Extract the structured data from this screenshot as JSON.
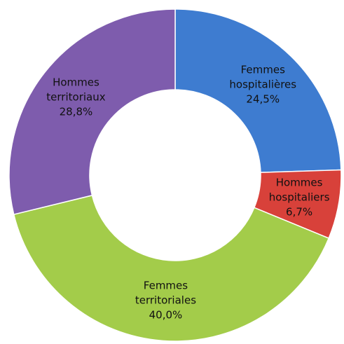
{
  "chart_data": {
    "type": "donut",
    "categories": [
      "Femmes hospitalières",
      "Hommes hospitaliers",
      "Femmes territoriales",
      "Hommes territoriaux"
    ],
    "values": [
      24.5,
      6.7,
      40.0,
      28.8
    ],
    "value_labels": [
      "24,5%",
      "6,7%",
      "40,0%",
      "28,8%"
    ],
    "colors": [
      "#3e7cd0",
      "#d8413a",
      "#a3cc4a",
      "#7e5cad"
    ]
  }
}
